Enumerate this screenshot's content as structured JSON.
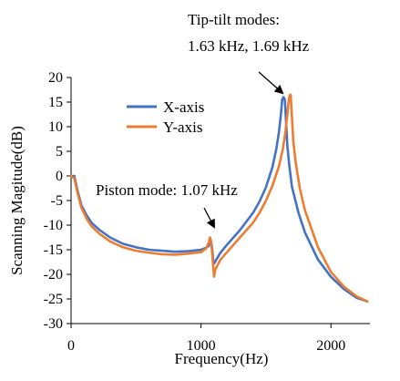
{
  "chart_data": {
    "type": "line",
    "title": "",
    "xlabel": "Frequency(Hz)",
    "ylabel": "Scanning Magitude(dB)",
    "xlim": [
      0,
      2300
    ],
    "ylim": [
      -30,
      20
    ],
    "xticks": [
      0,
      1000,
      2000
    ],
    "yticks": [
      20,
      15,
      10,
      5,
      0,
      -5,
      -10,
      -15,
      -20,
      -25,
      -30
    ],
    "grid": false,
    "legend_position": "upper-left",
    "series": [
      {
        "name": "X-axis",
        "color": "#4472C4",
        "x": [
          0,
          25,
          50,
          80,
          120,
          160,
          220,
          300,
          400,
          500,
          600,
          700,
          800,
          900,
          1000,
          1040,
          1060,
          1075,
          1085,
          1095,
          1100,
          1150,
          1200,
          1300,
          1400,
          1450,
          1500,
          1550,
          1580,
          1600,
          1615,
          1625,
          1635,
          1645,
          1655,
          1665,
          1680,
          1700,
          1750,
          1800,
          1900,
          2000,
          2100,
          2200,
          2280
        ],
        "y": [
          0,
          0,
          -3,
          -6,
          -8,
          -9.6,
          -11,
          -12.5,
          -13.8,
          -14.5,
          -15,
          -15.2,
          -15.4,
          -15.3,
          -15,
          -14.6,
          -14.2,
          -13,
          -14.5,
          -17.5,
          -17.8,
          -15.6,
          -14,
          -11,
          -7.5,
          -5.2,
          -2.3,
          1.8,
          5.5,
          9,
          12.5,
          15.5,
          16,
          15.5,
          11,
          6,
          2,
          -2.2,
          -7.5,
          -11.5,
          -17,
          -20.5,
          -23,
          -24.8,
          -25.5
        ]
      },
      {
        "name": "Y-axis",
        "color": "#ED7D31",
        "x": [
          0,
          25,
          50,
          80,
          120,
          160,
          220,
          300,
          400,
          500,
          600,
          700,
          800,
          900,
          1000,
          1040,
          1060,
          1070,
          1080,
          1090,
          1100,
          1110,
          1150,
          1200,
          1300,
          1400,
          1450,
          1500,
          1550,
          1600,
          1630,
          1650,
          1665,
          1675,
          1685,
          1690,
          1700,
          1710,
          1730,
          1760,
          1800,
          1900,
          2000,
          2100,
          2200,
          2280
        ],
        "y": [
          0,
          -0.5,
          -3.5,
          -6.5,
          -8.7,
          -10.3,
          -11.8,
          -13.3,
          -14.5,
          -15.2,
          -15.6,
          -15.9,
          -16,
          -15.8,
          -15.5,
          -14.7,
          -13.5,
          -12.5,
          -13.8,
          -17,
          -20.5,
          -19,
          -17,
          -15.5,
          -12.5,
          -9.5,
          -7.5,
          -5,
          -2,
          2,
          5.5,
          9,
          12.5,
          15.5,
          16.5,
          16.5,
          12,
          7,
          2.5,
          -2.5,
          -7,
          -14.5,
          -19.5,
          -22.5,
          -24.5,
          -25.5
        ]
      }
    ],
    "annotations": [
      {
        "text_lines": [
          "Tip-tilt modes:",
          "1.63 kHz, 1.69 kHz"
        ],
        "target": [
          1640,
          16.5
        ]
      },
      {
        "text_lines": [
          "Piston mode: 1.07 kHz"
        ],
        "target": [
          1080,
          -12.5
        ]
      }
    ]
  }
}
